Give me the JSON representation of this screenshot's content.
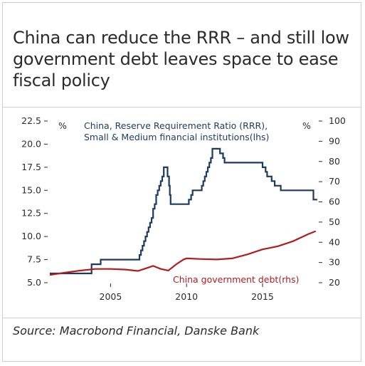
{
  "title": "China can reduce the RRR – and still low government debt leaves space to ease fiscal policy",
  "source": "Source: Macrobond Financial, Danske Bank",
  "colors": {
    "rrr": "#1d3b5e",
    "debt": "#b11c1c"
  },
  "chart_data": {
    "type": "line",
    "xlim": [
      2001.0,
      2018.7
    ],
    "x_ticks": [
      2005,
      2010,
      2015
    ],
    "left_axis": {
      "unit": "%",
      "ylim": [
        5.0,
        22.5
      ],
      "ticks": [
        "5.0",
        "7.5",
        "10.0",
        "12.5",
        "15.0",
        "17.5",
        "20.0",
        "22.5"
      ]
    },
    "right_axis": {
      "unit": "%",
      "ylim": [
        20,
        100
      ],
      "ticks": [
        "20",
        "30",
        "40",
        "50",
        "60",
        "70",
        "80",
        "90",
        "100"
      ]
    },
    "series": [
      {
        "name": "China, Reserve Requirement Ratio (RRR), Small & Medium financial institutions(lhs)",
        "axis": "left",
        "step": true,
        "x": [
          2001.0,
          2003.7,
          2003.75,
          2004.3,
          2004.35,
          2006.8,
          2006.9,
          2007.0,
          2007.1,
          2007.2,
          2007.3,
          2007.4,
          2007.5,
          2007.6,
          2007.7,
          2007.8,
          2007.9,
          2008.0,
          2008.1,
          2008.2,
          2008.3,
          2008.4,
          2008.5,
          2008.7,
          2008.75,
          2008.85,
          2008.9,
          2008.95,
          2010.1,
          2010.15,
          2010.3,
          2010.4,
          2010.5,
          2011.0,
          2011.1,
          2011.2,
          2011.3,
          2011.4,
          2011.5,
          2011.6,
          2011.7,
          2012.1,
          2012.2,
          2012.4,
          2012.5,
          2014.9,
          2015.0,
          2015.2,
          2015.3,
          2015.6,
          2015.8,
          2016.1,
          2016.2,
          2018.3,
          2018.35,
          2018.6
        ],
        "y": [
          6.0,
          6.0,
          7.0,
          7.0,
          7.5,
          7.5,
          8.0,
          8.5,
          9.0,
          9.5,
          10.0,
          10.5,
          11.0,
          11.5,
          12.0,
          13.0,
          13.5,
          14.5,
          15.0,
          15.5,
          16.0,
          16.5,
          17.5,
          17.5,
          16.5,
          15.5,
          14.5,
          13.5,
          13.5,
          14.0,
          14.5,
          15.0,
          15.0,
          15.5,
          16.0,
          16.5,
          17.0,
          17.5,
          18.0,
          18.5,
          19.5,
          19.5,
          19.0,
          18.5,
          18.0,
          18.0,
          17.5,
          17.0,
          16.5,
          16.0,
          15.5,
          15.5,
          15.0,
          15.0,
          14.0,
          14.0
        ]
      },
      {
        "name": "China government debt(rhs)",
        "axis": "right",
        "x": [
          2001.0,
          2002.0,
          2003.0,
          2004.0,
          2005.0,
          2006.0,
          2006.8,
          2007.3,
          2007.8,
          2008.3,
          2008.8,
          2009.3,
          2009.8,
          2010.0,
          2011.0,
          2012.0,
          2013.0,
          2014.0,
          2015.0,
          2016.0,
          2017.0,
          2018.0,
          2018.5
        ],
        "y": [
          23.8,
          25.0,
          26.0,
          26.8,
          26.8,
          26.5,
          25.8,
          27.0,
          28.3,
          26.8,
          26.0,
          29.0,
          31.5,
          32.0,
          31.7,
          31.5,
          32.0,
          34.0,
          36.5,
          38.0,
          40.5,
          44.0,
          45.5
        ]
      }
    ],
    "annotations": [
      {
        "text": "China, Reserve Requirement Ratio (RRR),",
        "series": 0
      },
      {
        "text": "Small & Medium financial institutions(lhs)",
        "series": 0
      },
      {
        "text": "China government debt(rhs)",
        "series": 1
      }
    ]
  }
}
